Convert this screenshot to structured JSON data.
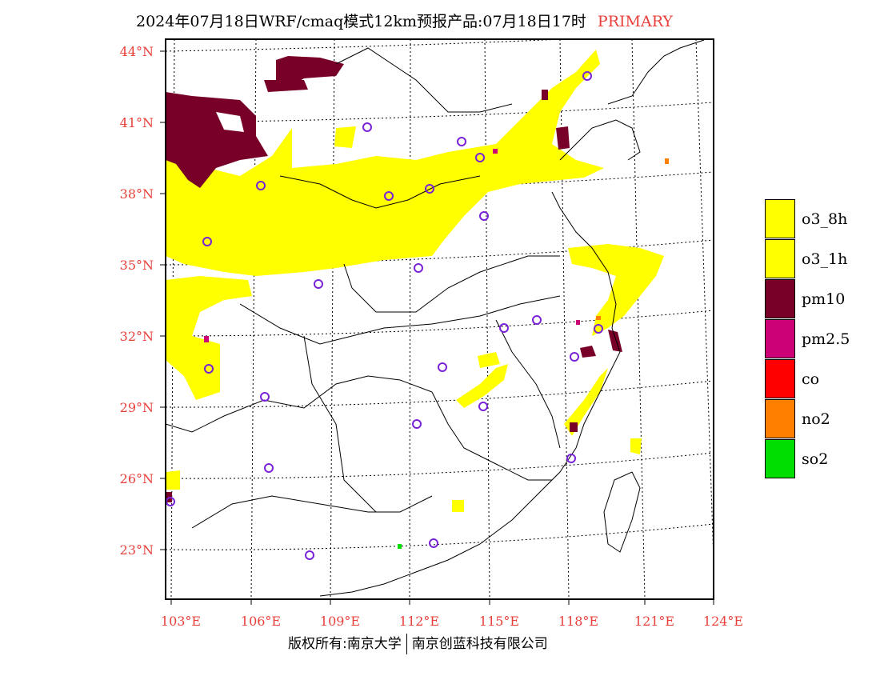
{
  "title": {
    "main": "2024年07月18日WRF/cmaq模式12km预报产品:07月18日17时",
    "variant": "PRIMARY"
  },
  "axes": {
    "lat_labels": [
      "44°N",
      "41°N",
      "38°N",
      "35°N",
      "32°N",
      "29°N",
      "26°N",
      "23°N"
    ],
    "lon_labels": [
      "103°E",
      "106°E",
      "109°E",
      "112°E",
      "115°E",
      "118°E",
      "121°E",
      "124°E"
    ]
  },
  "legend": [
    {
      "label": "o3_8h",
      "color": "#ffff00"
    },
    {
      "label": "o3_1h",
      "color": "#ffff00"
    },
    {
      "label": "pm10",
      "color": "#780028"
    },
    {
      "label": "pm2.5",
      "color": "#cc0077"
    },
    {
      "label": "co",
      "color": "#ff0000"
    },
    {
      "label": "no2",
      "color": "#ff7f00"
    },
    {
      "label": "so2",
      "color": "#00dd00"
    }
  ],
  "footer": {
    "left": "版权所有:南京大学",
    "right": "南京创蓝科技有限公司"
  },
  "colors": {
    "o3": "#ffff00",
    "pm10": "#780028",
    "pm25": "#cc0077",
    "no2": "#ff7f00",
    "so2": "#00dd00",
    "city_marker": "#7a22d6",
    "tick_text": "#e8403a"
  }
}
